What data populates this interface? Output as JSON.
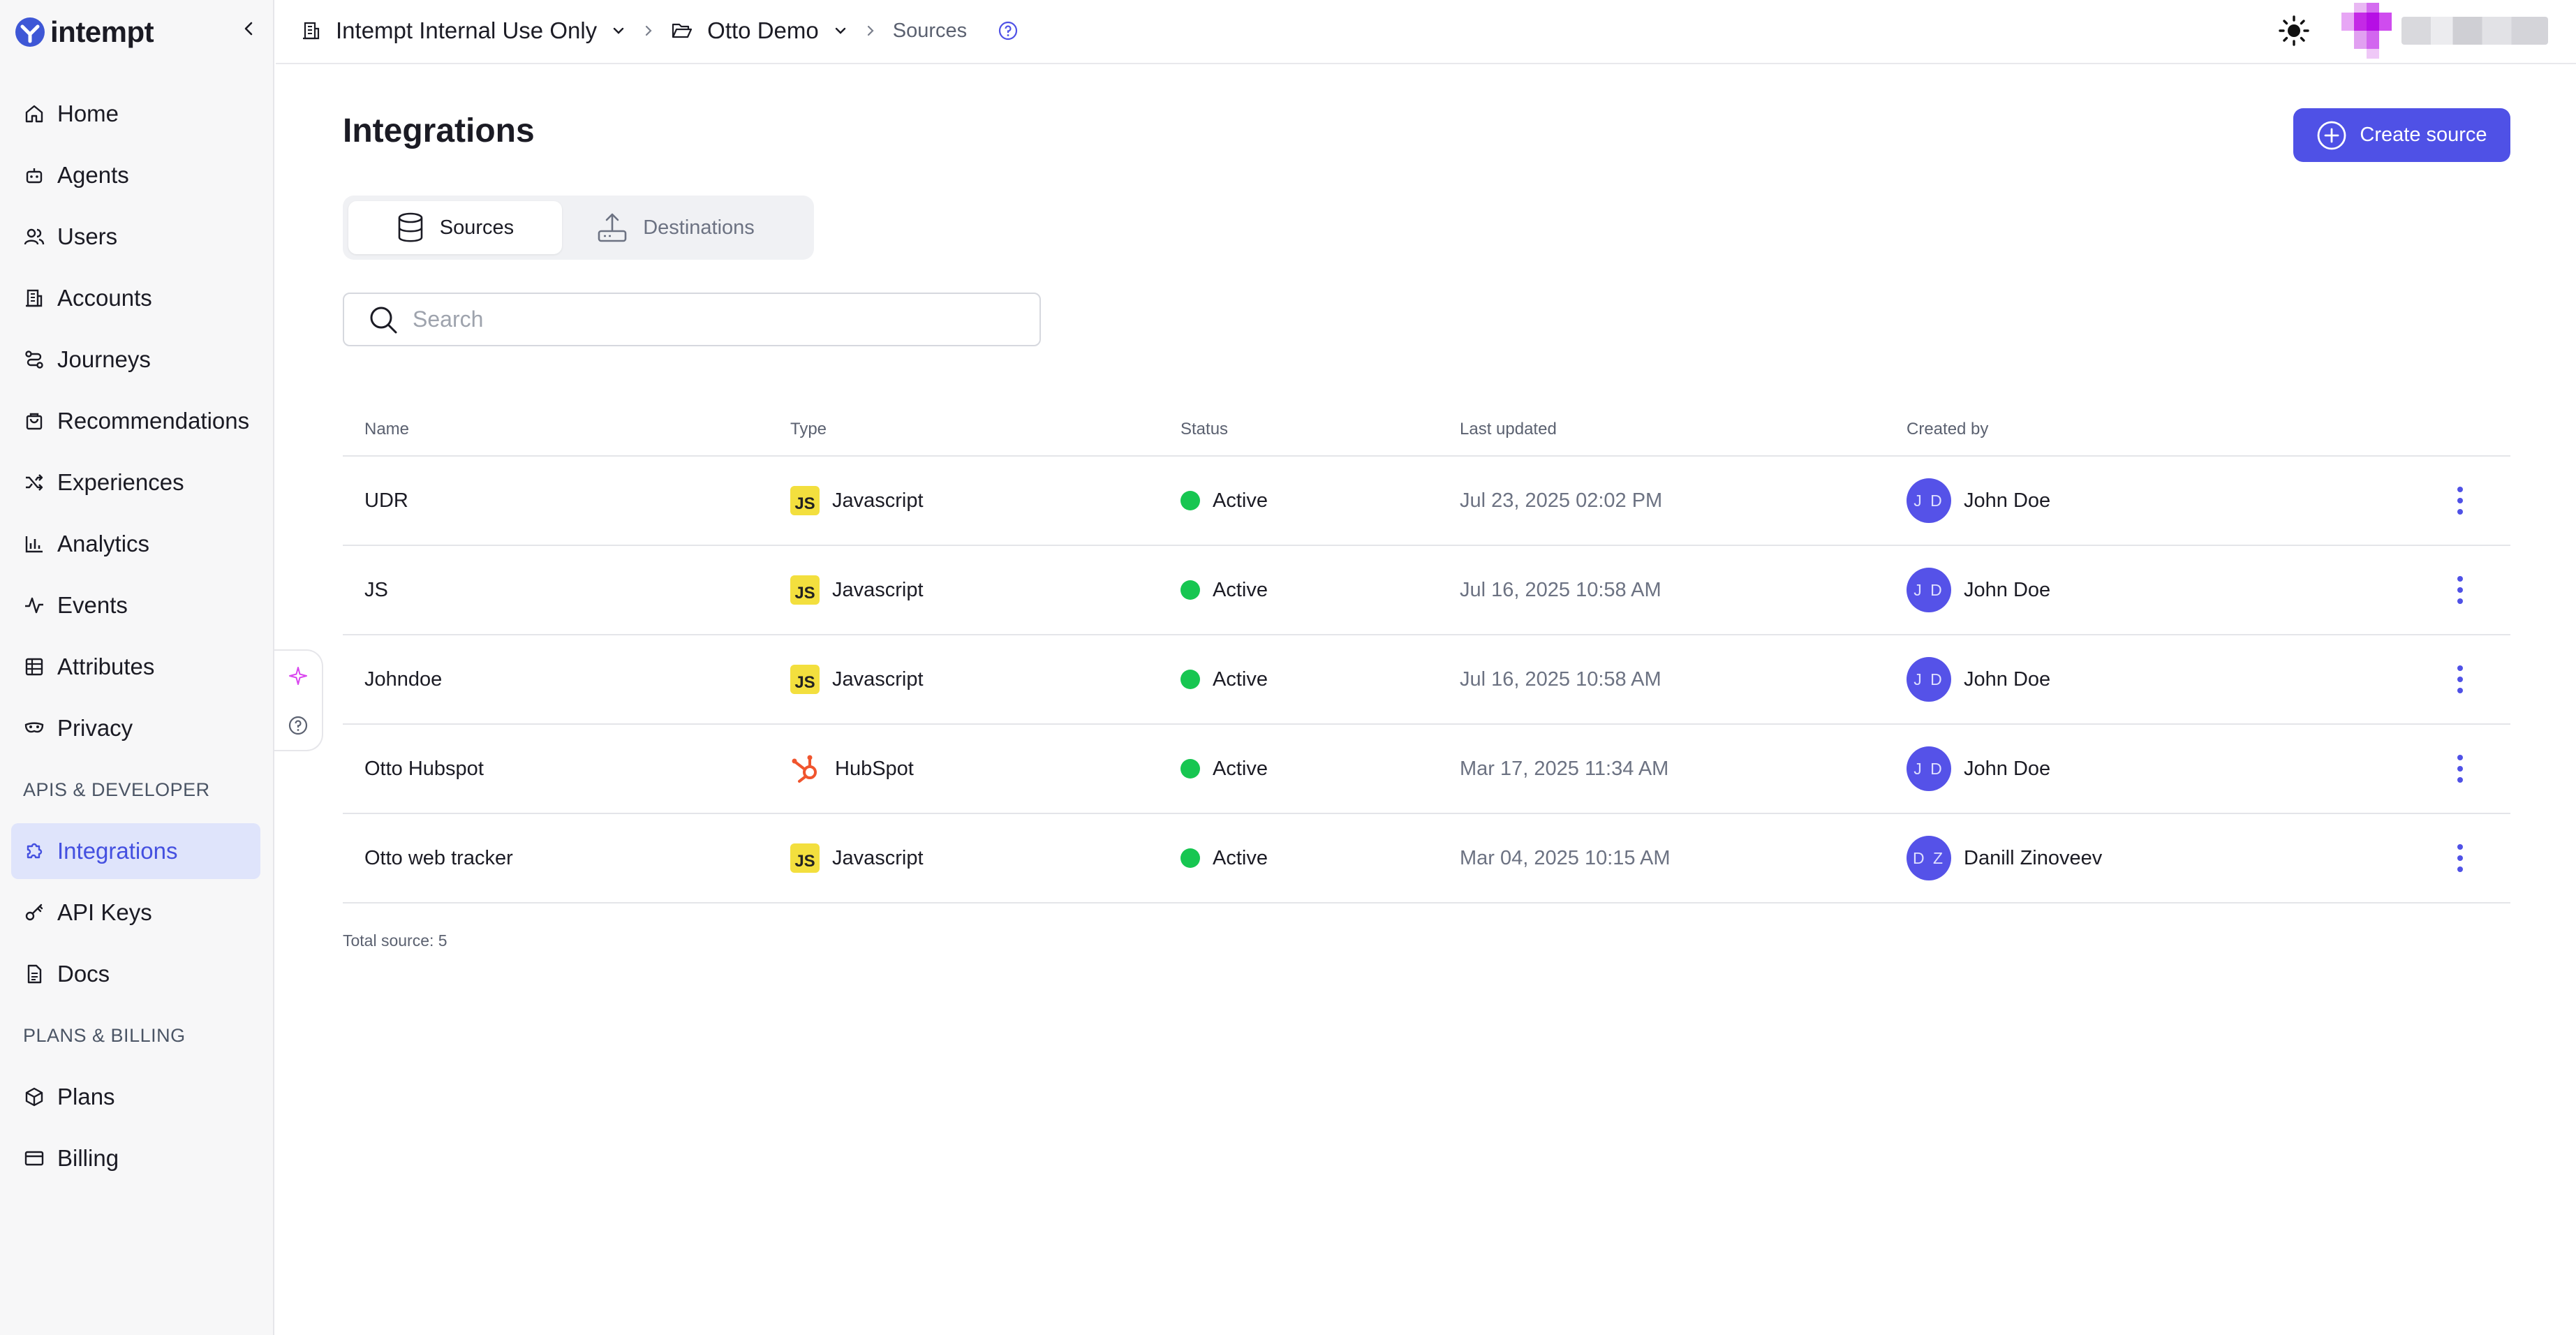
{
  "brand": {
    "name": "intempt"
  },
  "sidebar": {
    "items": [
      {
        "label": "Home",
        "icon": "home-icon"
      },
      {
        "label": "Agents",
        "icon": "robot-icon"
      },
      {
        "label": "Users",
        "icon": "users-icon"
      },
      {
        "label": "Accounts",
        "icon": "building-icon"
      },
      {
        "label": "Journeys",
        "icon": "route-icon"
      },
      {
        "label": "Recommendations",
        "icon": "shopping-bag-icon"
      },
      {
        "label": "Experiences",
        "icon": "shuffle-icon"
      },
      {
        "label": "Analytics",
        "icon": "bar-chart-icon"
      },
      {
        "label": "Events",
        "icon": "pulse-icon"
      },
      {
        "label": "Attributes",
        "icon": "table-icon"
      },
      {
        "label": "Privacy",
        "icon": "mask-icon"
      }
    ],
    "section_dev": "APIS & DEVELOPER",
    "dev_items": [
      {
        "label": "Integrations",
        "icon": "puzzle-icon",
        "active": true
      },
      {
        "label": "API Keys",
        "icon": "key-icon"
      },
      {
        "label": "Docs",
        "icon": "document-icon"
      }
    ],
    "section_billing": "PLANS & BILLING",
    "billing_items": [
      {
        "label": "Plans",
        "icon": "package-icon"
      },
      {
        "label": "Billing",
        "icon": "credit-card-icon"
      }
    ]
  },
  "topbar": {
    "org": "Intempt Internal Use Only",
    "project": "Otto Demo",
    "page": "Sources"
  },
  "page": {
    "title": "Integrations",
    "create_label": "Create source",
    "tabs": [
      {
        "label": "Sources",
        "active": true
      },
      {
        "label": "Destinations",
        "active": false
      }
    ],
    "search_placeholder": "Search"
  },
  "table": {
    "headers": [
      "Name",
      "Type",
      "Status",
      "Last updated",
      "Created by"
    ],
    "rows": [
      {
        "name": "UDR",
        "type": "Javascript",
        "type_icon": "js",
        "status": "Active",
        "updated": "Jul 23, 2025 02:02 PM",
        "initials": "J D",
        "creator": "John Doe"
      },
      {
        "name": "JS",
        "type": "Javascript",
        "type_icon": "js",
        "status": "Active",
        "updated": "Jul 16, 2025 10:58 AM",
        "initials": "J D",
        "creator": "John Doe"
      },
      {
        "name": "Johndoe",
        "type": "Javascript",
        "type_icon": "js",
        "status": "Active",
        "updated": "Jul 16, 2025 10:58 AM",
        "initials": "J D",
        "creator": "John Doe"
      },
      {
        "name": "Otto Hubspot",
        "type": "HubSpot",
        "type_icon": "hubspot",
        "status": "Active",
        "updated": "Mar 17, 2025 11:34 AM",
        "initials": "J D",
        "creator": "John Doe"
      },
      {
        "name": "Otto web tracker",
        "type": "Javascript",
        "type_icon": "js",
        "status": "Active",
        "updated": "Mar 04, 2025 10:15 AM",
        "initials": "D Z",
        "creator": "Danill Zinoveev"
      }
    ],
    "js_badge": "JS",
    "total": "Total source: 5"
  },
  "colors": {
    "accent": "#4f51e6",
    "active_nav_bg": "#dfe4fb",
    "status_active": "#17c651",
    "hubspot": "#f0552e",
    "js": "#f3df3e"
  }
}
